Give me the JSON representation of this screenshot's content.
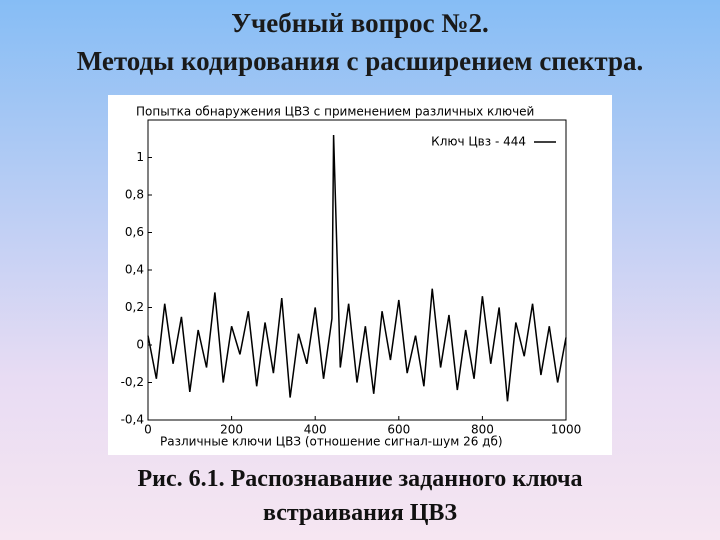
{
  "slide_title": [
    "Учебный вопрос №2.",
    "Методы кодирования с расширением спектра."
  ],
  "chart_data": {
    "type": "line",
    "title": "Попытка обнаружения ЦВЗ с применением  различных ключей",
    "xlabel": "Различные ключи ЦВЗ (отношение сигнал-шум 26 дб)",
    "x": [
      0,
      20,
      40,
      60,
      80,
      100,
      120,
      140,
      160,
      180,
      200,
      220,
      240,
      260,
      280,
      300,
      320,
      340,
      360,
      380,
      400,
      420,
      440,
      444,
      460,
      480,
      500,
      520,
      540,
      560,
      580,
      600,
      620,
      640,
      660,
      680,
      700,
      720,
      740,
      760,
      780,
      800,
      820,
      840,
      860,
      880,
      900,
      920,
      940,
      960,
      980,
      1000
    ],
    "series": [
      {
        "name": "Ключ Цвз - 444",
        "color": "#000000",
        "values": [
          0.05,
          -0.18,
          0.22,
          -0.1,
          0.15,
          -0.25,
          0.08,
          -0.12,
          0.28,
          -0.2,
          0.1,
          -0.05,
          0.18,
          -0.22,
          0.12,
          -0.15,
          0.25,
          -0.28,
          0.06,
          -0.1,
          0.2,
          -0.18,
          0.14,
          1.12,
          -0.12,
          0.22,
          -0.2,
          0.1,
          -0.26,
          0.18,
          -0.08,
          0.24,
          -0.15,
          0.05,
          -0.22,
          0.3,
          -0.12,
          0.16,
          -0.24,
          0.08,
          -0.18,
          0.26,
          -0.1,
          0.2,
          -0.3,
          0.12,
          -0.06,
          0.22,
          -0.16,
          0.1,
          -0.2,
          0.04
        ]
      }
    ],
    "xlim": [
      0,
      1000
    ],
    "ylim": [
      -0.4,
      1.2
    ],
    "xticks": [
      0,
      200,
      400,
      600,
      800,
      1000
    ],
    "yticks": [
      {
        "value": -0.4,
        "label": "-0,4"
      },
      {
        "value": -0.2,
        "label": "-0,2"
      },
      0,
      {
        "value": 0.2,
        "label": "0,2"
      },
      {
        "value": 0.4,
        "label": "0,4"
      },
      {
        "value": 0.6,
        "label": "0,6"
      },
      {
        "value": 0.8,
        "label": "0,8"
      },
      1
    ],
    "legend": "upper right"
  },
  "caption": [
    "Рис. 6.1. Распознавание заданного ключа",
    "встраивания ЦВЗ"
  ]
}
